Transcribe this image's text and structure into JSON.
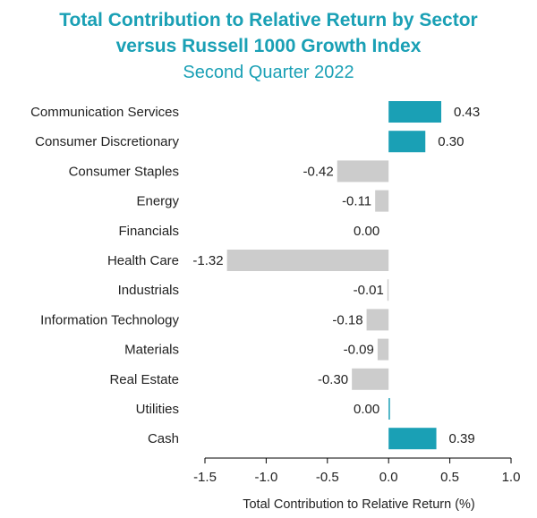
{
  "chart_data": {
    "type": "bar",
    "orientation": "horizontal",
    "title": "Total Contribution to Relative Return by Sector versus Russell 1000 Growth Index",
    "title_lines": [
      "Total Contribution to Relative Return by Sector",
      "versus Russell 1000 Growth Index"
    ],
    "subtitle": "Second Quarter 2022",
    "xlabel": "Total Contribution to Relative Return (%)",
    "ylabel": "",
    "xlim": [
      -1.5,
      1.0
    ],
    "xticks": [
      "-1.5",
      "-1.0",
      "-0.5",
      "0.0",
      "0.5",
      "1.0"
    ],
    "grid": false,
    "legend": "none",
    "categories": [
      "Communication Services",
      "Consumer Discretionary",
      "Consumer Staples",
      "Energy",
      "Financials",
      "Health Care",
      "Industrials",
      "Information Technology",
      "Materials",
      "Real Estate",
      "Utilities",
      "Cash"
    ],
    "values": [
      0.43,
      0.3,
      -0.42,
      -0.11,
      0.0,
      -1.32,
      -0.01,
      -0.18,
      -0.09,
      -0.3,
      0.0,
      0.39
    ],
    "value_labels": [
      "0.43",
      "0.30",
      "-0.42",
      "-0.11",
      "0.00",
      "-1.32",
      "-0.01",
      "-0.18",
      "-0.09",
      "-0.30",
      "0.00",
      "0.39"
    ],
    "colors": {
      "positive": "#1aa0b5",
      "negative": "#cccccc",
      "title": "#1aa0b5"
    }
  }
}
